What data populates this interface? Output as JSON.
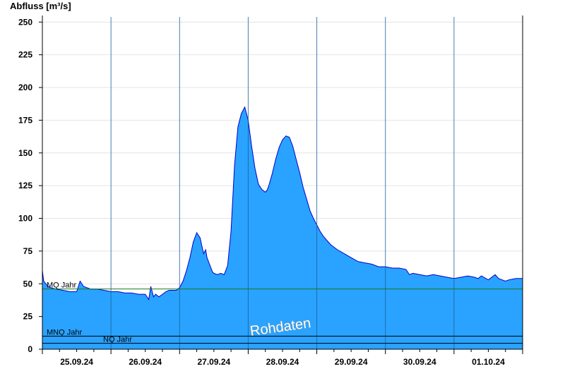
{
  "chart_data": {
    "type": "area",
    "ylabel": "Abfluss [m³/s]",
    "ylim": [
      0,
      255
    ],
    "yticks": [
      0,
      25,
      50,
      75,
      100,
      125,
      150,
      175,
      200,
      225,
      250
    ],
    "xlim": [
      0,
      7
    ],
    "day_labels": [
      "25.09.24",
      "26.09.24",
      "27.09.24",
      "28.09.24",
      "29.09.24",
      "30.09.24",
      "01.10.24"
    ],
    "grid": true,
    "fill_color": "#29a3ff",
    "line_color": "#0000cc",
    "reference_lines": [
      {
        "name": "MQ Jahr",
        "value": 46,
        "color": "#1a7a1a"
      },
      {
        "name": "MNQ Jahr",
        "value": 10,
        "color": "#000000"
      },
      {
        "name": "NQ Jahr",
        "value": 4.5,
        "color": "#000000"
      }
    ],
    "watermark": "Rohdaten",
    "series": [
      {
        "x": [
          0.0,
          0.02,
          0.05,
          0.08,
          0.12,
          0.2,
          0.3,
          0.4,
          0.5,
          0.55,
          0.6,
          0.65,
          0.7,
          0.8,
          0.9,
          1.0,
          1.1,
          1.2,
          1.3,
          1.4,
          1.5,
          1.55,
          1.58,
          1.62,
          1.65,
          1.7,
          1.75,
          1.8,
          1.85,
          1.95,
          2.0,
          2.05,
          2.1,
          2.15,
          2.2,
          2.25,
          2.3,
          2.32,
          2.35,
          2.38,
          2.4,
          2.45,
          2.48,
          2.5,
          2.55,
          2.6,
          2.65,
          2.7,
          2.75,
          2.8,
          2.85,
          2.9,
          2.95,
          3.0,
          3.05,
          3.1,
          3.15,
          3.2,
          3.25,
          3.28,
          3.3,
          3.35,
          3.4,
          3.45,
          3.5,
          3.55,
          3.6,
          3.65,
          3.7,
          3.75,
          3.8,
          3.85,
          3.9,
          3.95,
          4.0,
          4.05,
          4.1,
          4.15,
          4.2,
          4.3,
          4.4,
          4.5,
          4.6,
          4.7,
          4.8,
          4.9,
          5.0,
          5.1,
          5.2,
          5.3,
          5.35,
          5.4,
          5.5,
          5.6,
          5.7,
          5.8,
          5.9,
          6.0,
          6.1,
          6.2,
          6.3,
          6.35,
          6.4,
          6.5,
          6.6,
          6.65,
          6.7,
          6.75,
          6.8,
          6.9,
          7.0
        ],
        "y": [
          60,
          52,
          50,
          48,
          47,
          46,
          45,
          44,
          44,
          52,
          48,
          47,
          46,
          46,
          45,
          44,
          44,
          43,
          43,
          42,
          42,
          38,
          48,
          40,
          42,
          40,
          42,
          44,
          45,
          45,
          47,
          52,
          60,
          70,
          82,
          89,
          85,
          80,
          73,
          76,
          70,
          63,
          59,
          58,
          57,
          58,
          57,
          64,
          90,
          140,
          170,
          180,
          185,
          175,
          155,
          138,
          126,
          122,
          120,
          122,
          125,
          134,
          145,
          154,
          160,
          163,
          162,
          155,
          145,
          135,
          124,
          115,
          106,
          100,
          95,
          90,
          86,
          83,
          80,
          76,
          73,
          70,
          67,
          66,
          65,
          63,
          63,
          62,
          62,
          61,
          57,
          58,
          57,
          56,
          57,
          56,
          55,
          54,
          55,
          56,
          55,
          54,
          56,
          53,
          57,
          54,
          53,
          52,
          53,
          54,
          54
        ]
      }
    ]
  }
}
